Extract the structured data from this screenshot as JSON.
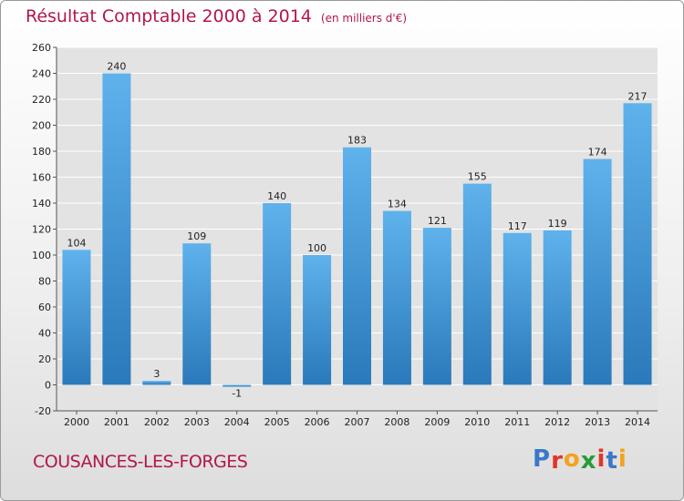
{
  "title": "Résultat Comptable 2000 à 2014",
  "unit_note": "(en milliers d'€)",
  "commune": "COUSANCES-LES-FORGES",
  "logo": {
    "text": "Proxiti",
    "colors": [
      "#3a78c8",
      "#e0352b",
      "#f4a21a",
      "#2a9a3a",
      "#e0352b",
      "#3a78c8",
      "#f4a21a"
    ]
  },
  "colors": {
    "title": "#b2164f",
    "bar_light": "#5fb2ec",
    "bar_dark": "#2a79ba",
    "grid": "#ffffff"
  },
  "chart_data": {
    "type": "bar",
    "title": "Résultat Comptable 2000 à 2014",
    "subtitle": "(en milliers d'€)",
    "xlabel": "",
    "ylabel": "",
    "categories": [
      "2000",
      "2001",
      "2002",
      "2003",
      "2004",
      "2005",
      "2006",
      "2007",
      "2008",
      "2009",
      "2010",
      "2011",
      "2012",
      "2013",
      "2014"
    ],
    "values": [
      104,
      240,
      3,
      109,
      -1,
      140,
      100,
      183,
      134,
      121,
      155,
      117,
      119,
      174,
      217
    ],
    "ylim": [
      -20,
      260
    ],
    "yticks": [
      -20,
      0,
      20,
      40,
      60,
      80,
      100,
      120,
      140,
      160,
      180,
      200,
      220,
      240,
      260
    ],
    "grid": true,
    "legend": "none"
  }
}
